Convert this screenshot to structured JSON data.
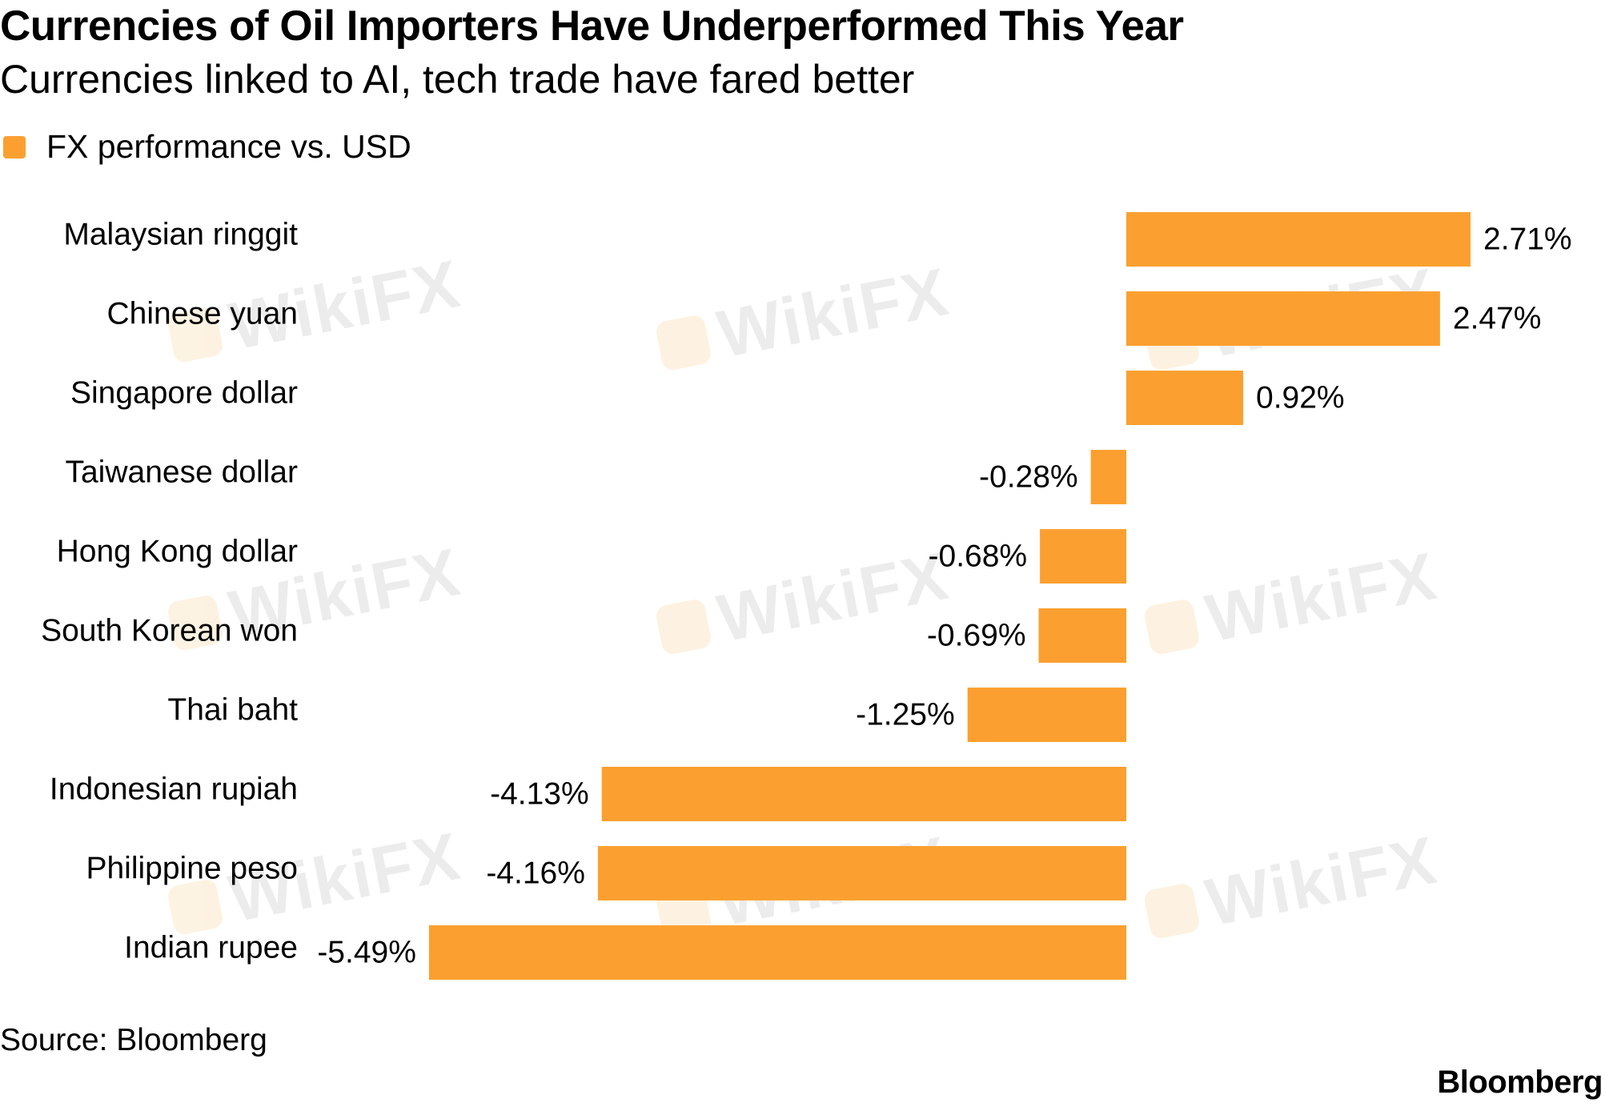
{
  "header": {
    "title": "Currencies of Oil Importers Have Underperformed This Year",
    "subtitle": "Currencies linked to AI, tech trade have fared better"
  },
  "legend": {
    "label": "FX performance vs. USD"
  },
  "footer": {
    "source": "Source: Bloomberg",
    "brand": "Bloomberg"
  },
  "watermark": {
    "text": "WikiFX"
  },
  "colors": {
    "bar": "#fba030",
    "text": "#000000"
  },
  "chart_data": {
    "type": "bar",
    "orientation": "horizontal",
    "categories": [
      "Malaysian ringgit",
      "Chinese yuan",
      "Singapore dollar",
      "Taiwanese dollar",
      "Hong Kong dollar",
      "South Korean won",
      "Thai baht",
      "Indonesian rupiah",
      "Philippine peso",
      "Indian rupee"
    ],
    "series": [
      {
        "name": "FX performance vs. USD",
        "values": [
          2.71,
          2.47,
          0.92,
          -0.28,
          -0.68,
          -0.69,
          -1.25,
          -4.13,
          -4.16,
          -5.49
        ]
      }
    ],
    "value_labels": [
      "2.71%",
      "2.47%",
      "0.92%",
      "-0.28%",
      "-0.68%",
      "-0.69%",
      "-1.25%",
      "-4.13%",
      "-4.16%",
      "-5.49%"
    ],
    "xlim": [
      -5.49,
      2.71
    ],
    "grid": false,
    "legend_position": "top-left"
  }
}
